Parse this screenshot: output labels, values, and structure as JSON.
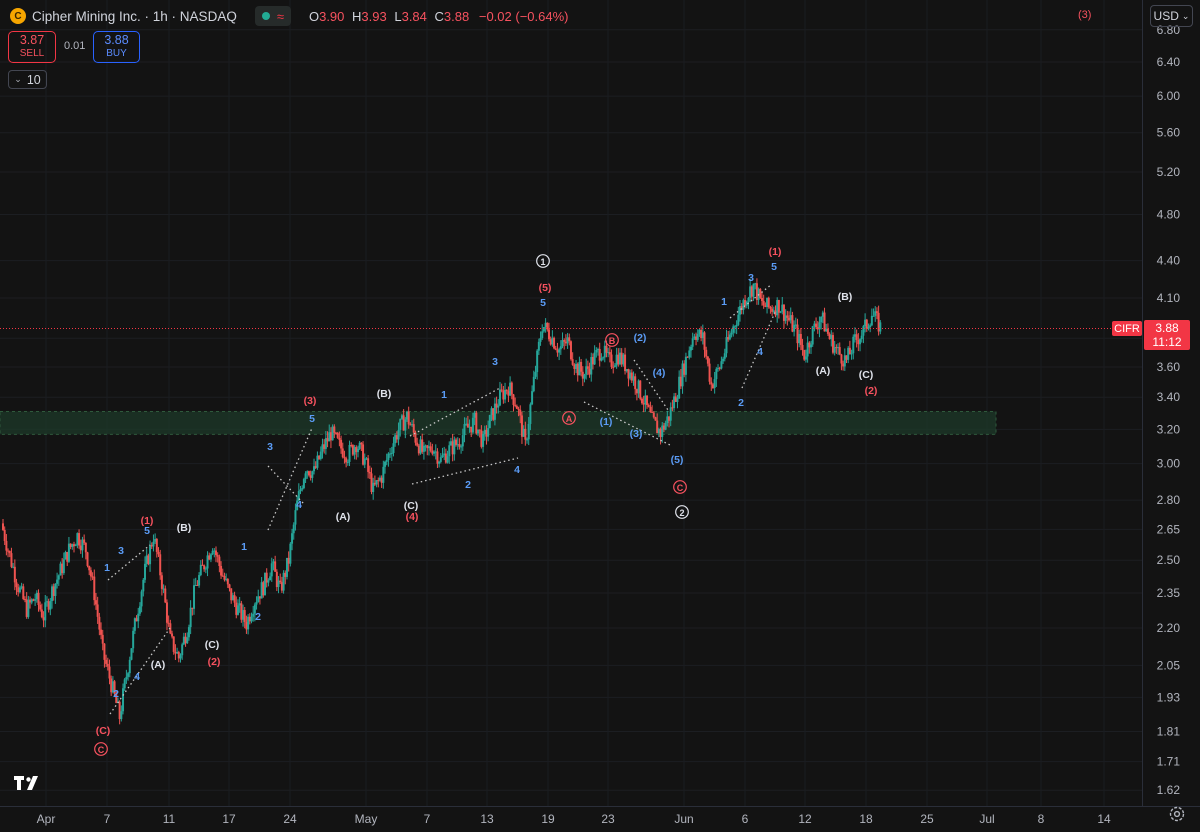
{
  "header": {
    "logo_letter": "C",
    "title": "Cipher Mining Inc. · 1h · NASDAQ",
    "indicator_icons": [
      "status-dot-icon",
      "wave-icon"
    ],
    "ohlc": {
      "o_label": "O",
      "o": "3.90",
      "h_label": "H",
      "h": "3.93",
      "l_label": "L",
      "l": "3.84",
      "c_label": "C",
      "c": "3.88",
      "change": "−0.02 (−0.64%)"
    },
    "right_wave_label": "(3)"
  },
  "trade": {
    "sell_price": "3.87",
    "sell_label": "SELL",
    "spread": "0.01",
    "buy_price": "3.88",
    "buy_label": "BUY",
    "lots": "10"
  },
  "currency": "USD",
  "price_axis": [
    "6.80",
    "6.40",
    "6.00",
    "5.60",
    "5.20",
    "4.80",
    "4.40",
    "4.10",
    "3.80",
    "3.60",
    "3.40",
    "3.20",
    "3.00",
    "2.80",
    "2.65",
    "2.50",
    "2.35",
    "2.20",
    "2.05",
    "1.93",
    "1.81",
    "1.71",
    "1.62"
  ],
  "last_price": {
    "symbol": "CIFR",
    "price": "3.88",
    "countdown": "11:12"
  },
  "date_axis": [
    "Apr",
    "7",
    "11",
    "17",
    "24",
    "May",
    "7",
    "13",
    "19",
    "23",
    "Jun",
    "6",
    "12",
    "18",
    "25",
    "Jul",
    "8",
    "14"
  ],
  "colors": {
    "background": "#131313",
    "up": "#26a69a",
    "down": "#ef5350",
    "wave_blue": "#5b9cf6",
    "wave_red": "#f7525f",
    "wave_white": "#e0e3eb",
    "zone": "#1d3a2a",
    "price_line": "#f23645"
  },
  "chart_data": {
    "type": "candlestick",
    "symbol": "CIFR",
    "interval": "1h",
    "y_scale": "log",
    "ylim": [
      1.58,
      6.9
    ],
    "x_ticks": [
      "Apr",
      "7",
      "11",
      "17",
      "24",
      "May",
      "7",
      "13",
      "19",
      "23",
      "Jun",
      "6",
      "12",
      "18",
      "25",
      "Jul",
      "8",
      "14"
    ],
    "support_zone": [
      3.17,
      3.31
    ],
    "last_close": 3.88,
    "path_closes": [
      2.68,
      2.52,
      2.38,
      2.28,
      2.33,
      2.25,
      2.36,
      2.45,
      2.55,
      2.62,
      2.55,
      2.35,
      2.1,
      1.98,
      1.86,
      2.05,
      2.25,
      2.45,
      2.62,
      2.4,
      2.15,
      2.08,
      2.2,
      2.38,
      2.48,
      2.58,
      2.45,
      2.35,
      2.28,
      2.22,
      2.32,
      2.38,
      2.48,
      2.36,
      2.5,
      2.78,
      2.98,
      2.95,
      3.08,
      3.18,
      3.1,
      3.05,
      3.12,
      3.02,
      2.85,
      2.93,
      3.08,
      3.2,
      3.28,
      3.15,
      3.05,
      3.1,
      3.02,
      3.08,
      3.12,
      3.2,
      3.25,
      3.12,
      3.28,
      3.4,
      3.47,
      3.35,
      3.1,
      3.5,
      3.9,
      3.82,
      3.72,
      3.78,
      3.6,
      3.55,
      3.65,
      3.72,
      3.63,
      3.68,
      3.6,
      3.5,
      3.38,
      3.25,
      3.18,
      3.28,
      3.45,
      3.65,
      3.85,
      3.8,
      3.48,
      3.6,
      3.78,
      3.95,
      4.1,
      4.2,
      4.05,
      4.02,
      4.05,
      3.95,
      3.85,
      3.68,
      3.85,
      3.96,
      3.8,
      3.7,
      3.64,
      3.78,
      3.85,
      3.98,
      3.88
    ],
    "wave_labels": [
      {
        "text": "(C)",
        "color": "red"
      },
      {
        "text": "C",
        "circled": true,
        "color": "red"
      },
      {
        "text": "1",
        "color": "blue"
      },
      {
        "text": "2",
        "color": "blue"
      },
      {
        "text": "3",
        "color": "blue"
      },
      {
        "text": "4",
        "color": "blue"
      },
      {
        "text": "5",
        "color": "blue"
      },
      {
        "text": "(1)",
        "color": "red"
      },
      {
        "text": "(A)",
        "color": "white"
      },
      {
        "text": "(B)",
        "color": "white"
      },
      {
        "text": "(C)",
        "color": "white"
      },
      {
        "text": "(2)",
        "color": "red"
      },
      {
        "text": "1",
        "color": "blue"
      },
      {
        "text": "2",
        "color": "blue"
      },
      {
        "text": "3",
        "color": "blue"
      },
      {
        "text": "4",
        "color": "blue"
      },
      {
        "text": "5",
        "color": "blue"
      },
      {
        "text": "(3)",
        "color": "red"
      },
      {
        "text": "(A)",
        "color": "white"
      },
      {
        "text": "(B)",
        "color": "white"
      },
      {
        "text": "(C)",
        "color": "white"
      },
      {
        "text": "(4)",
        "color": "red"
      },
      {
        "text": "1",
        "color": "blue"
      },
      {
        "text": "2",
        "color": "blue"
      },
      {
        "text": "3",
        "color": "blue"
      },
      {
        "text": "4",
        "color": "blue"
      },
      {
        "text": "5",
        "color": "blue"
      },
      {
        "text": "(5)",
        "color": "red"
      },
      {
        "text": "1",
        "circled": true,
        "color": "white"
      },
      {
        "text": "A",
        "circled": true,
        "color": "red"
      },
      {
        "text": "B",
        "circled": true,
        "color": "red"
      },
      {
        "text": "(1)",
        "color": "blue"
      },
      {
        "text": "(2)",
        "color": "blue"
      },
      {
        "text": "(3)",
        "color": "blue"
      },
      {
        "text": "(4)",
        "color": "blue"
      },
      {
        "text": "(5)",
        "color": "blue"
      },
      {
        "text": "C",
        "circled": true,
        "color": "red"
      },
      {
        "text": "2",
        "circled": true,
        "color": "white"
      },
      {
        "text": "1",
        "color": "blue"
      },
      {
        "text": "2",
        "color": "blue"
      },
      {
        "text": "3",
        "color": "blue"
      },
      {
        "text": "4",
        "color": "blue"
      },
      {
        "text": "5",
        "color": "blue"
      },
      {
        "text": "(1)",
        "color": "red"
      },
      {
        "text": "(A)",
        "color": "white"
      },
      {
        "text": "(B)",
        "color": "white"
      },
      {
        "text": "(C)",
        "color": "white"
      },
      {
        "text": "(2)",
        "color": "red"
      }
    ]
  }
}
